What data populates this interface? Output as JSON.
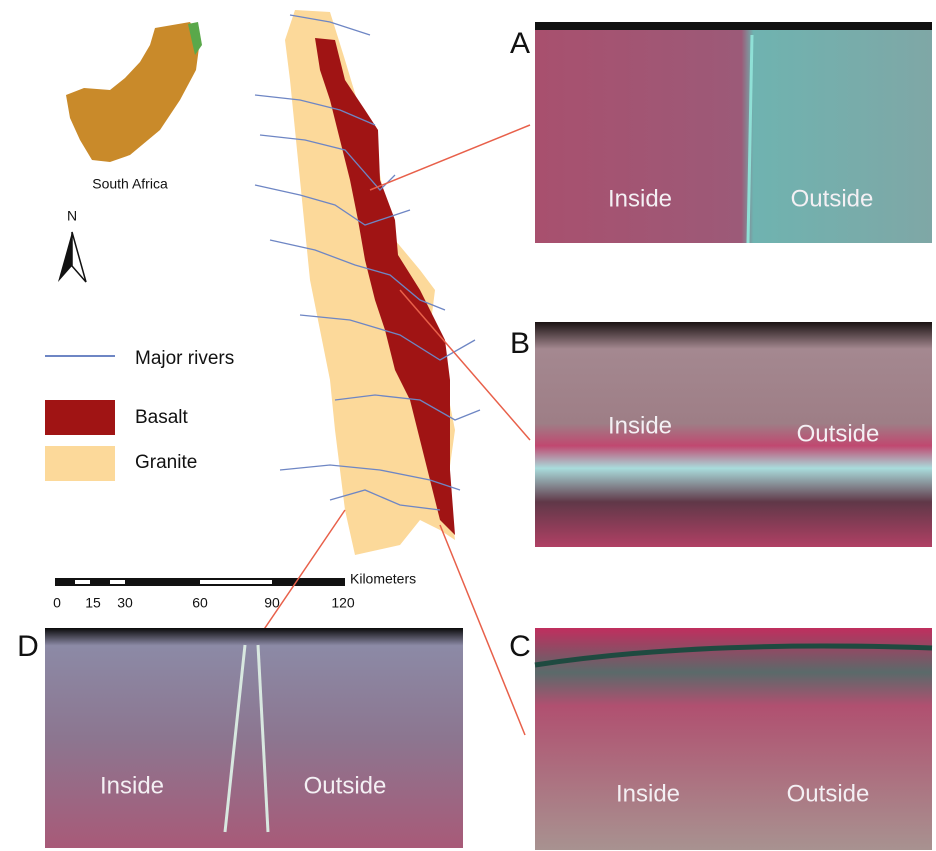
{
  "inset": {
    "label": "South Africa"
  },
  "north_arrow": {
    "label": "N"
  },
  "legend": {
    "items": [
      {
        "label": "Major rivers"
      },
      {
        "label": "Basalt"
      },
      {
        "label": "Granite"
      }
    ]
  },
  "scale_bar": {
    "unit": "Kilometers",
    "ticks": [
      0,
      15,
      30,
      60,
      90,
      120
    ]
  },
  "panels": [
    {
      "label": "A",
      "inside": "Inside",
      "outside": "Outside"
    },
    {
      "label": "B",
      "inside": "Inside",
      "outside": "Outside"
    },
    {
      "label": "C",
      "inside": "Inside",
      "outside": "Outside"
    },
    {
      "label": "D",
      "inside": "Inside",
      "outside": "Outside"
    }
  ]
}
